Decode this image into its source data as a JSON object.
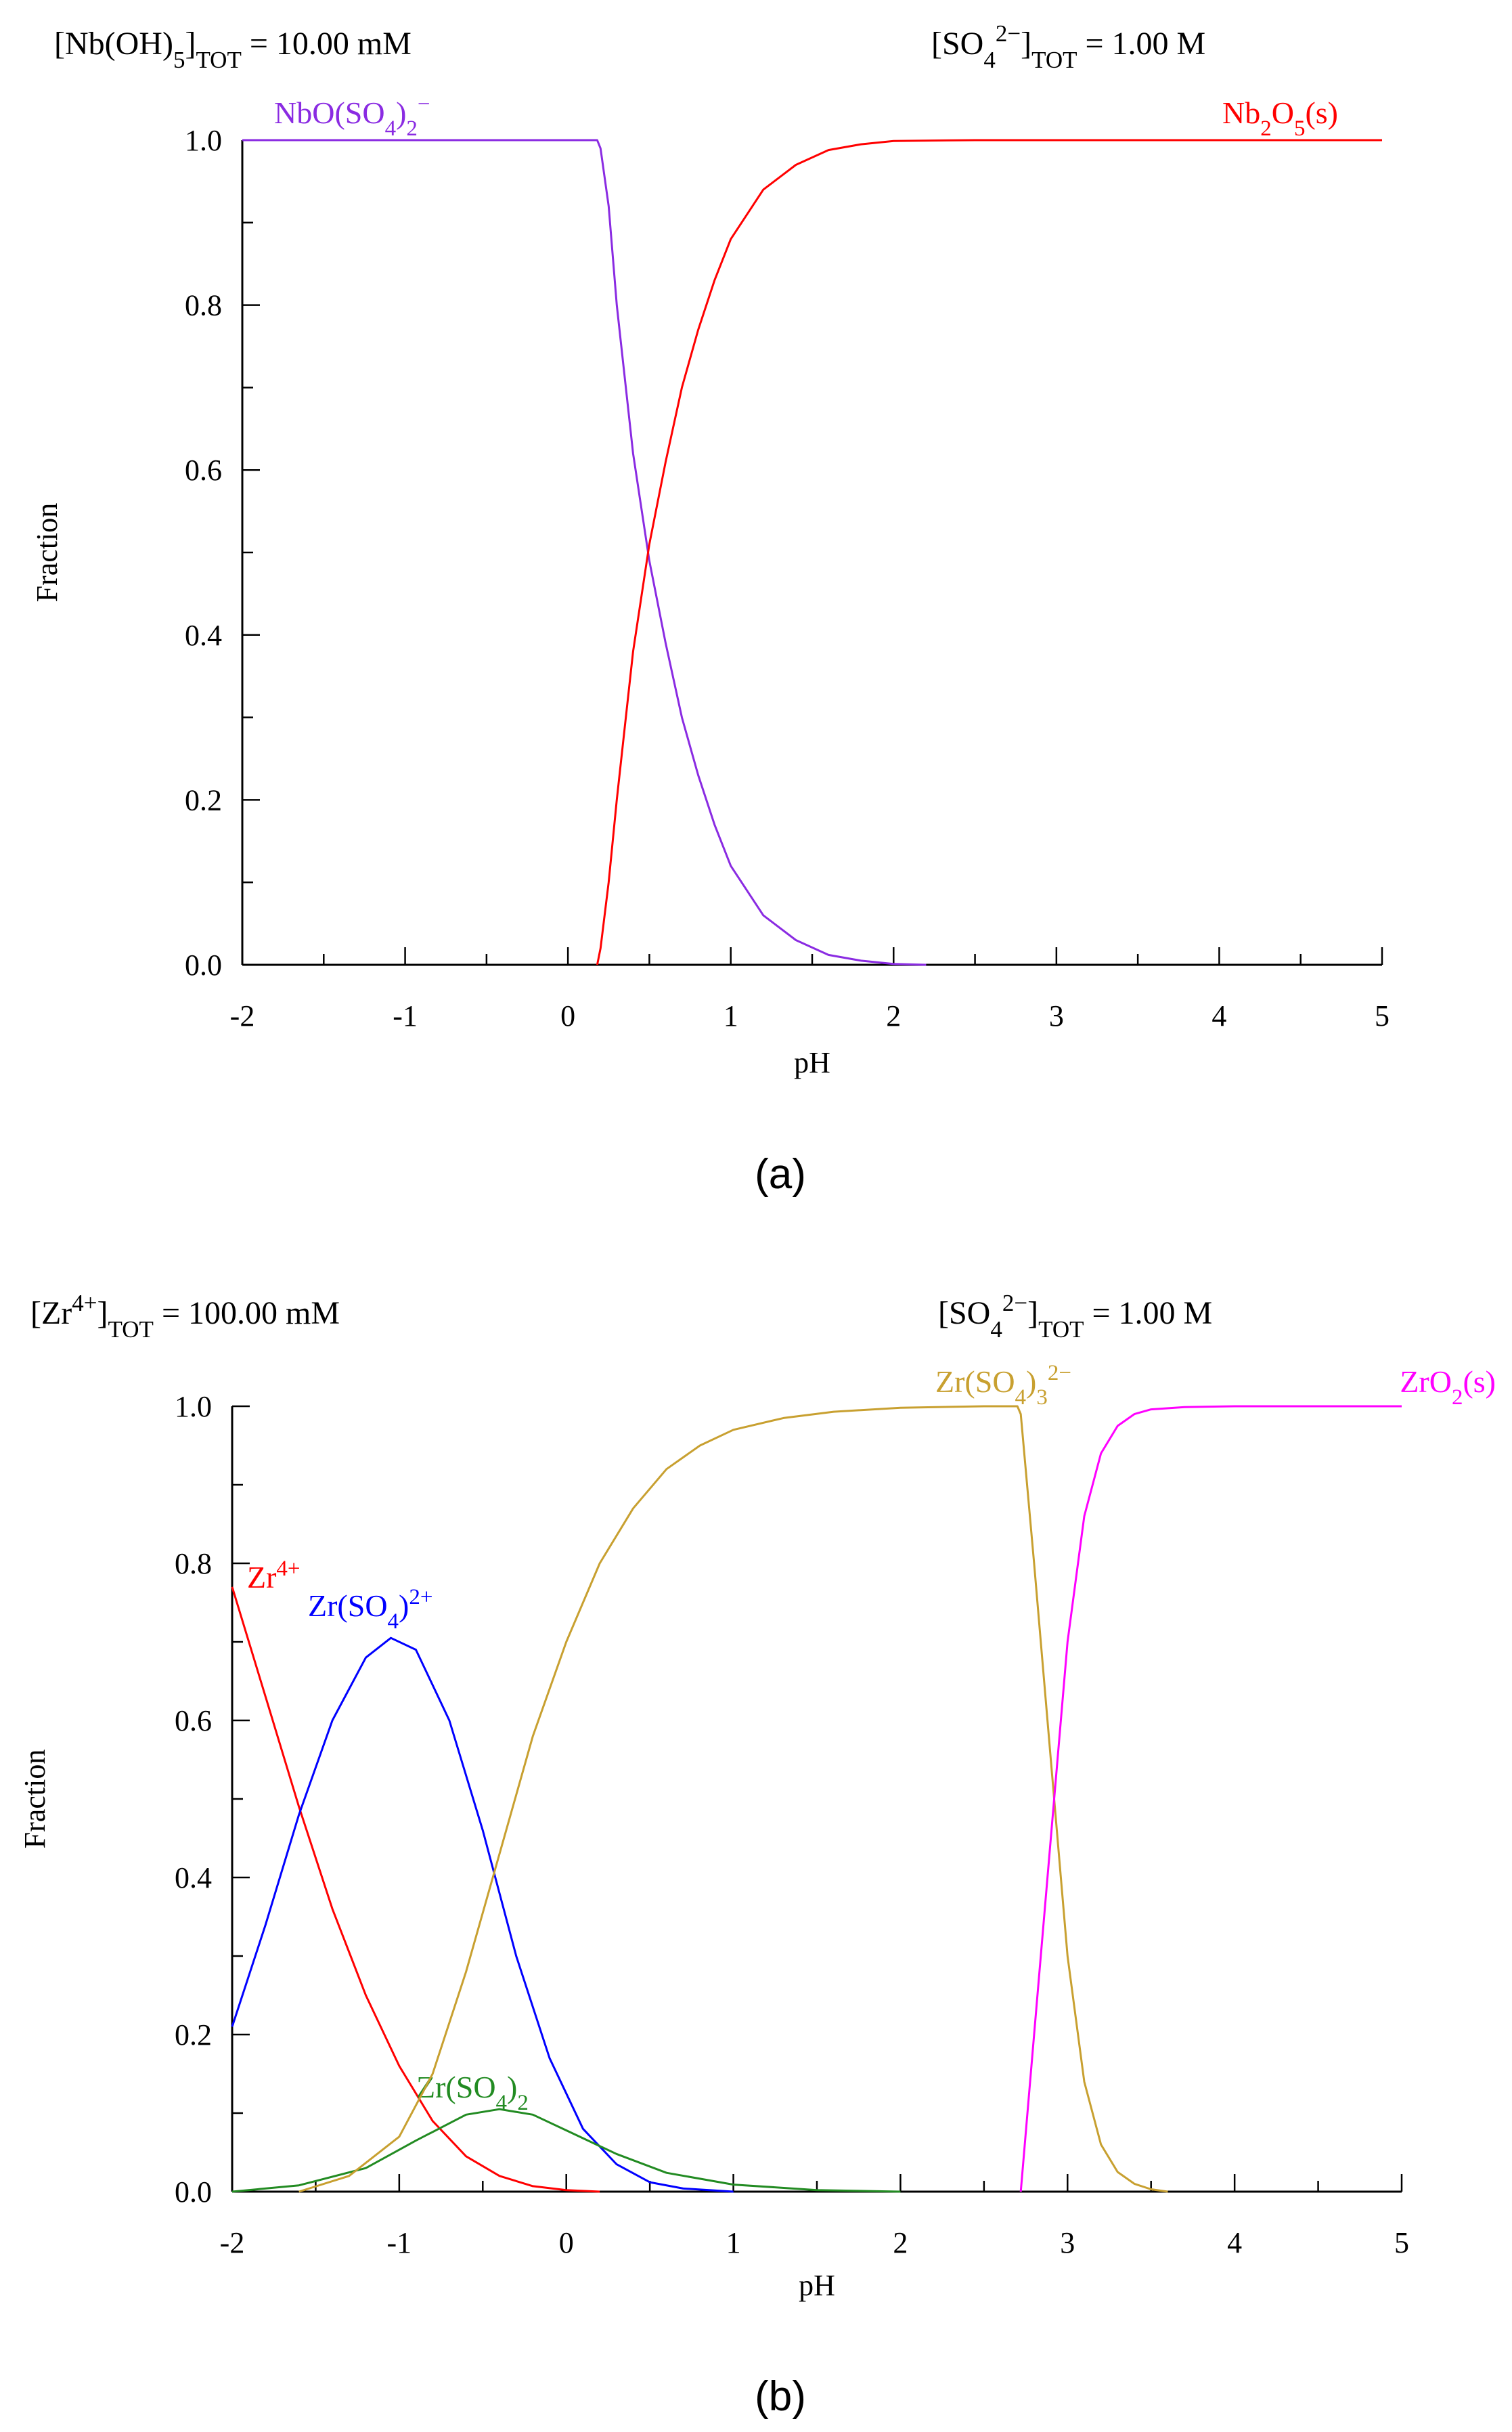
{
  "charts": [
    {
      "caption": "(a)",
      "header_left": {
        "base": "[Nb(OH)",
        "sub": "5",
        "close": "]",
        "sub2": "TOT",
        "value": "=   10.00 mM"
      },
      "header_right": {
        "base": "[SO",
        "sub": "4",
        "sup": "2−",
        "close": "]",
        "sub2": "TOT",
        "value": "=    1.00 M"
      }
    },
    {
      "caption": "(b)",
      "header_left": {
        "base": "[Zr",
        "sup": "4+",
        "close": "]",
        "sub2": "TOT",
        "value": "=  100.00 mM"
      },
      "header_right": {
        "base": "[SO",
        "sub": "4",
        "sup": "2−",
        "close": "]",
        "sub2": "TOT",
        "value": "=    1.00 M"
      }
    }
  ],
  "chart_data": [
    {
      "type": "line",
      "title": "",
      "xlabel": "pH",
      "ylabel": "Fraction",
      "xlim": [
        -2,
        5
      ],
      "ylim": [
        0,
        1
      ],
      "xticks": [
        "-2",
        "-1",
        "0",
        "1",
        "2",
        "3",
        "4",
        "5"
      ],
      "yticks": [
        "0.0",
        "0.2",
        "0.4",
        "0.6",
        "0.8",
        "1.0"
      ],
      "series": [
        {
          "name": "NbO(SO4)2-",
          "label_parts": [
            [
              "NbO(SO",
              ""
            ],
            [
              "4",
              "sub"
            ],
            [
              ")",
              ""
            ],
            [
              "2",
              "sub"
            ],
            [
              "−",
              "sup"
            ]
          ],
          "color": "#8a2be2",
          "x": [
            -2,
            0.1,
            0.18,
            0.2,
            0.25,
            0.3,
            0.4,
            0.5,
            0.6,
            0.7,
            0.8,
            0.9,
            1.0,
            1.2,
            1.4,
            1.6,
            1.8,
            2.0,
            2.2
          ],
          "y": [
            1.0,
            1.0,
            1.0,
            0.99,
            0.92,
            0.8,
            0.62,
            0.49,
            0.39,
            0.3,
            0.23,
            0.17,
            0.12,
            0.06,
            0.03,
            0.012,
            0.005,
            0.001,
            0.0
          ]
        },
        {
          "name": "Nb2O5(s)",
          "label_parts": [
            [
              "Nb",
              ""
            ],
            [
              "2",
              "sub"
            ],
            [
              "O",
              ""
            ],
            [
              "5",
              "sub"
            ],
            [
              "(s)",
              ""
            ]
          ],
          "color": "#ff0000",
          "x": [
            0.18,
            0.2,
            0.25,
            0.3,
            0.4,
            0.5,
            0.6,
            0.7,
            0.8,
            0.9,
            1.0,
            1.2,
            1.4,
            1.6,
            1.8,
            2.0,
            2.5,
            3.0,
            5.0
          ],
          "y": [
            0.0,
            0.02,
            0.1,
            0.2,
            0.38,
            0.51,
            0.61,
            0.7,
            0.77,
            0.83,
            0.88,
            0.94,
            0.97,
            0.988,
            0.995,
            0.999,
            1.0,
            1.0,
            1.0
          ]
        }
      ]
    },
    {
      "type": "line",
      "title": "",
      "xlabel": "pH",
      "ylabel": "Fraction",
      "xlim": [
        -2,
        5
      ],
      "ylim": [
        0,
        1
      ],
      "xticks": [
        "-2",
        "-1",
        "0",
        "1",
        "2",
        "3",
        "4",
        "5"
      ],
      "yticks": [
        "0.0",
        "0.2",
        "0.4",
        "0.6",
        "0.8",
        "1.0"
      ],
      "series": [
        {
          "name": "Zr4+",
          "label_parts": [
            [
              "Zr",
              ""
            ],
            [
              "4+",
              "sup"
            ]
          ],
          "color": "#ff0000",
          "x": [
            -2.0,
            -1.8,
            -1.6,
            -1.4,
            -1.2,
            -1.0,
            -0.8,
            -0.6,
            -0.4,
            -0.2,
            0.0,
            0.2
          ],
          "y": [
            0.77,
            0.63,
            0.49,
            0.36,
            0.25,
            0.16,
            0.09,
            0.045,
            0.02,
            0.007,
            0.002,
            0.0
          ]
        },
        {
          "name": "Zr(SO4)2+",
          "label_parts": [
            [
              "Zr(SO",
              ""
            ],
            [
              "4",
              "sub"
            ],
            [
              ")",
              ""
            ],
            [
              "2+",
              "sup"
            ]
          ],
          "color": "#0000ff",
          "x": [
            -2.0,
            -1.8,
            -1.6,
            -1.4,
            -1.2,
            -1.05,
            -0.9,
            -0.7,
            -0.5,
            -0.3,
            -0.1,
            0.1,
            0.3,
            0.5,
            0.7,
            1.0
          ],
          "y": [
            0.21,
            0.34,
            0.48,
            0.6,
            0.68,
            0.705,
            0.69,
            0.6,
            0.46,
            0.3,
            0.17,
            0.08,
            0.035,
            0.012,
            0.004,
            0.0
          ]
        },
        {
          "name": "Zr(SO4)2",
          "label_parts": [
            [
              "Zr(SO",
              ""
            ],
            [
              "4",
              "sub"
            ],
            [
              ")",
              ""
            ],
            [
              "2",
              "sub"
            ]
          ],
          "color": "#228b22",
          "x": [
            -2.0,
            -1.6,
            -1.2,
            -0.9,
            -0.6,
            -0.4,
            -0.2,
            0.0,
            0.3,
            0.6,
            1.0,
            1.5,
            2.0
          ],
          "y": [
            0.0,
            0.008,
            0.03,
            0.065,
            0.098,
            0.105,
            0.098,
            0.078,
            0.048,
            0.024,
            0.009,
            0.002,
            0.0
          ]
        },
        {
          "name": "Zr(SO4)3 2-",
          "label_parts": [
            [
              "Zr(SO",
              ""
            ],
            [
              "4",
              "sub"
            ],
            [
              ")",
              ""
            ],
            [
              "3",
              "sub"
            ],
            [
              "2−",
              "sup"
            ]
          ],
          "color": "#c8a030",
          "x": [
            -1.6,
            -1.3,
            -1.0,
            -0.8,
            -0.6,
            -0.4,
            -0.2,
            0.0,
            0.2,
            0.4,
            0.6,
            0.8,
            1.0,
            1.3,
            1.6,
            2.0,
            2.5,
            2.7,
            2.72,
            2.8,
            2.9,
            3.0,
            3.1,
            3.2,
            3.3,
            3.4,
            3.5,
            3.6
          ],
          "y": [
            0.0,
            0.02,
            0.07,
            0.15,
            0.28,
            0.43,
            0.58,
            0.7,
            0.8,
            0.87,
            0.92,
            0.95,
            0.97,
            0.985,
            0.993,
            0.998,
            1.0,
            1.0,
            0.99,
            0.8,
            0.55,
            0.3,
            0.14,
            0.06,
            0.025,
            0.01,
            0.003,
            0.0
          ]
        },
        {
          "name": "ZrO2(s)",
          "label_parts": [
            [
              "ZrO",
              ""
            ],
            [
              "2",
              "sub"
            ],
            [
              "(s)",
              ""
            ]
          ],
          "color": "#ff00ff",
          "x": [
            2.72,
            2.8,
            2.9,
            3.0,
            3.1,
            3.2,
            3.3,
            3.4,
            3.5,
            3.7,
            4.0,
            5.0
          ],
          "y": [
            0.0,
            0.2,
            0.45,
            0.7,
            0.86,
            0.94,
            0.975,
            0.99,
            0.996,
            0.999,
            1.0,
            1.0
          ]
        }
      ]
    }
  ]
}
